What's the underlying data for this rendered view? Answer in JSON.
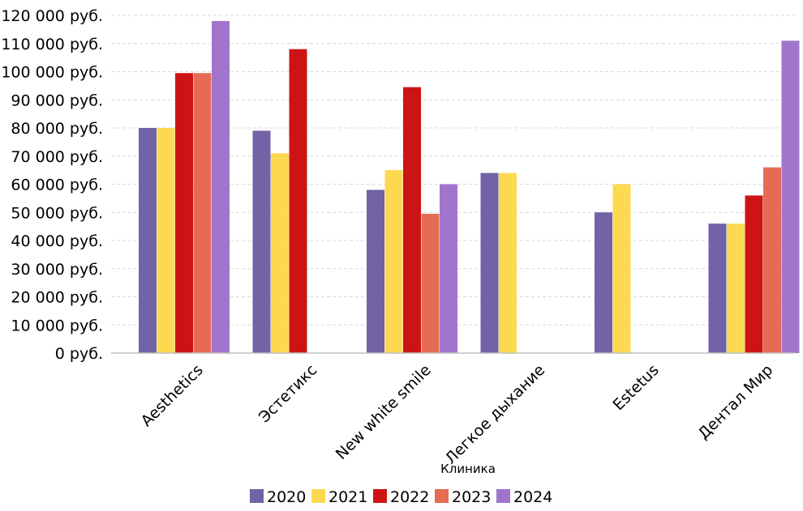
{
  "chart_data": {
    "type": "bar",
    "xlabel": "Клиника",
    "ylabel": "",
    "ylim": [
      0,
      120000
    ],
    "ytick_step": 10000,
    "ytick_labels": [
      "0 руб.",
      "10 000 руб.",
      "20 000 руб.",
      "30 000 руб.",
      "40 000 руб.",
      "50 000 руб.",
      "60 000 руб.",
      "70 000 руб.",
      "80 000 руб.",
      "90 000 руб.",
      "100 000 руб.",
      "110 000 руб.",
      "120 000 руб."
    ],
    "categories": [
      "Aesthetics",
      "Эстетикс",
      "New white smile",
      "Легкое дыхание",
      "Estetus",
      "Дентал Мир"
    ],
    "grid": true,
    "legend_position": "bottom",
    "series": [
      {
        "name": "2020",
        "color": "#7262a6",
        "values": [
          80000,
          79000,
          58000,
          64000,
          50000,
          46000
        ]
      },
      {
        "name": "2021",
        "color": "#fcd951",
        "values": [
          80000,
          71000,
          65000,
          64000,
          60000,
          46000
        ]
      },
      {
        "name": "2022",
        "color": "#cc1414",
        "values": [
          99500,
          108000,
          94500,
          null,
          null,
          56000
        ]
      },
      {
        "name": "2023",
        "color": "#e56b54",
        "values": [
          99500,
          null,
          49500,
          null,
          null,
          66000
        ]
      },
      {
        "name": "2024",
        "color": "#a175cc",
        "values": [
          118000,
          null,
          60000,
          null,
          null,
          111000
        ]
      }
    ]
  }
}
